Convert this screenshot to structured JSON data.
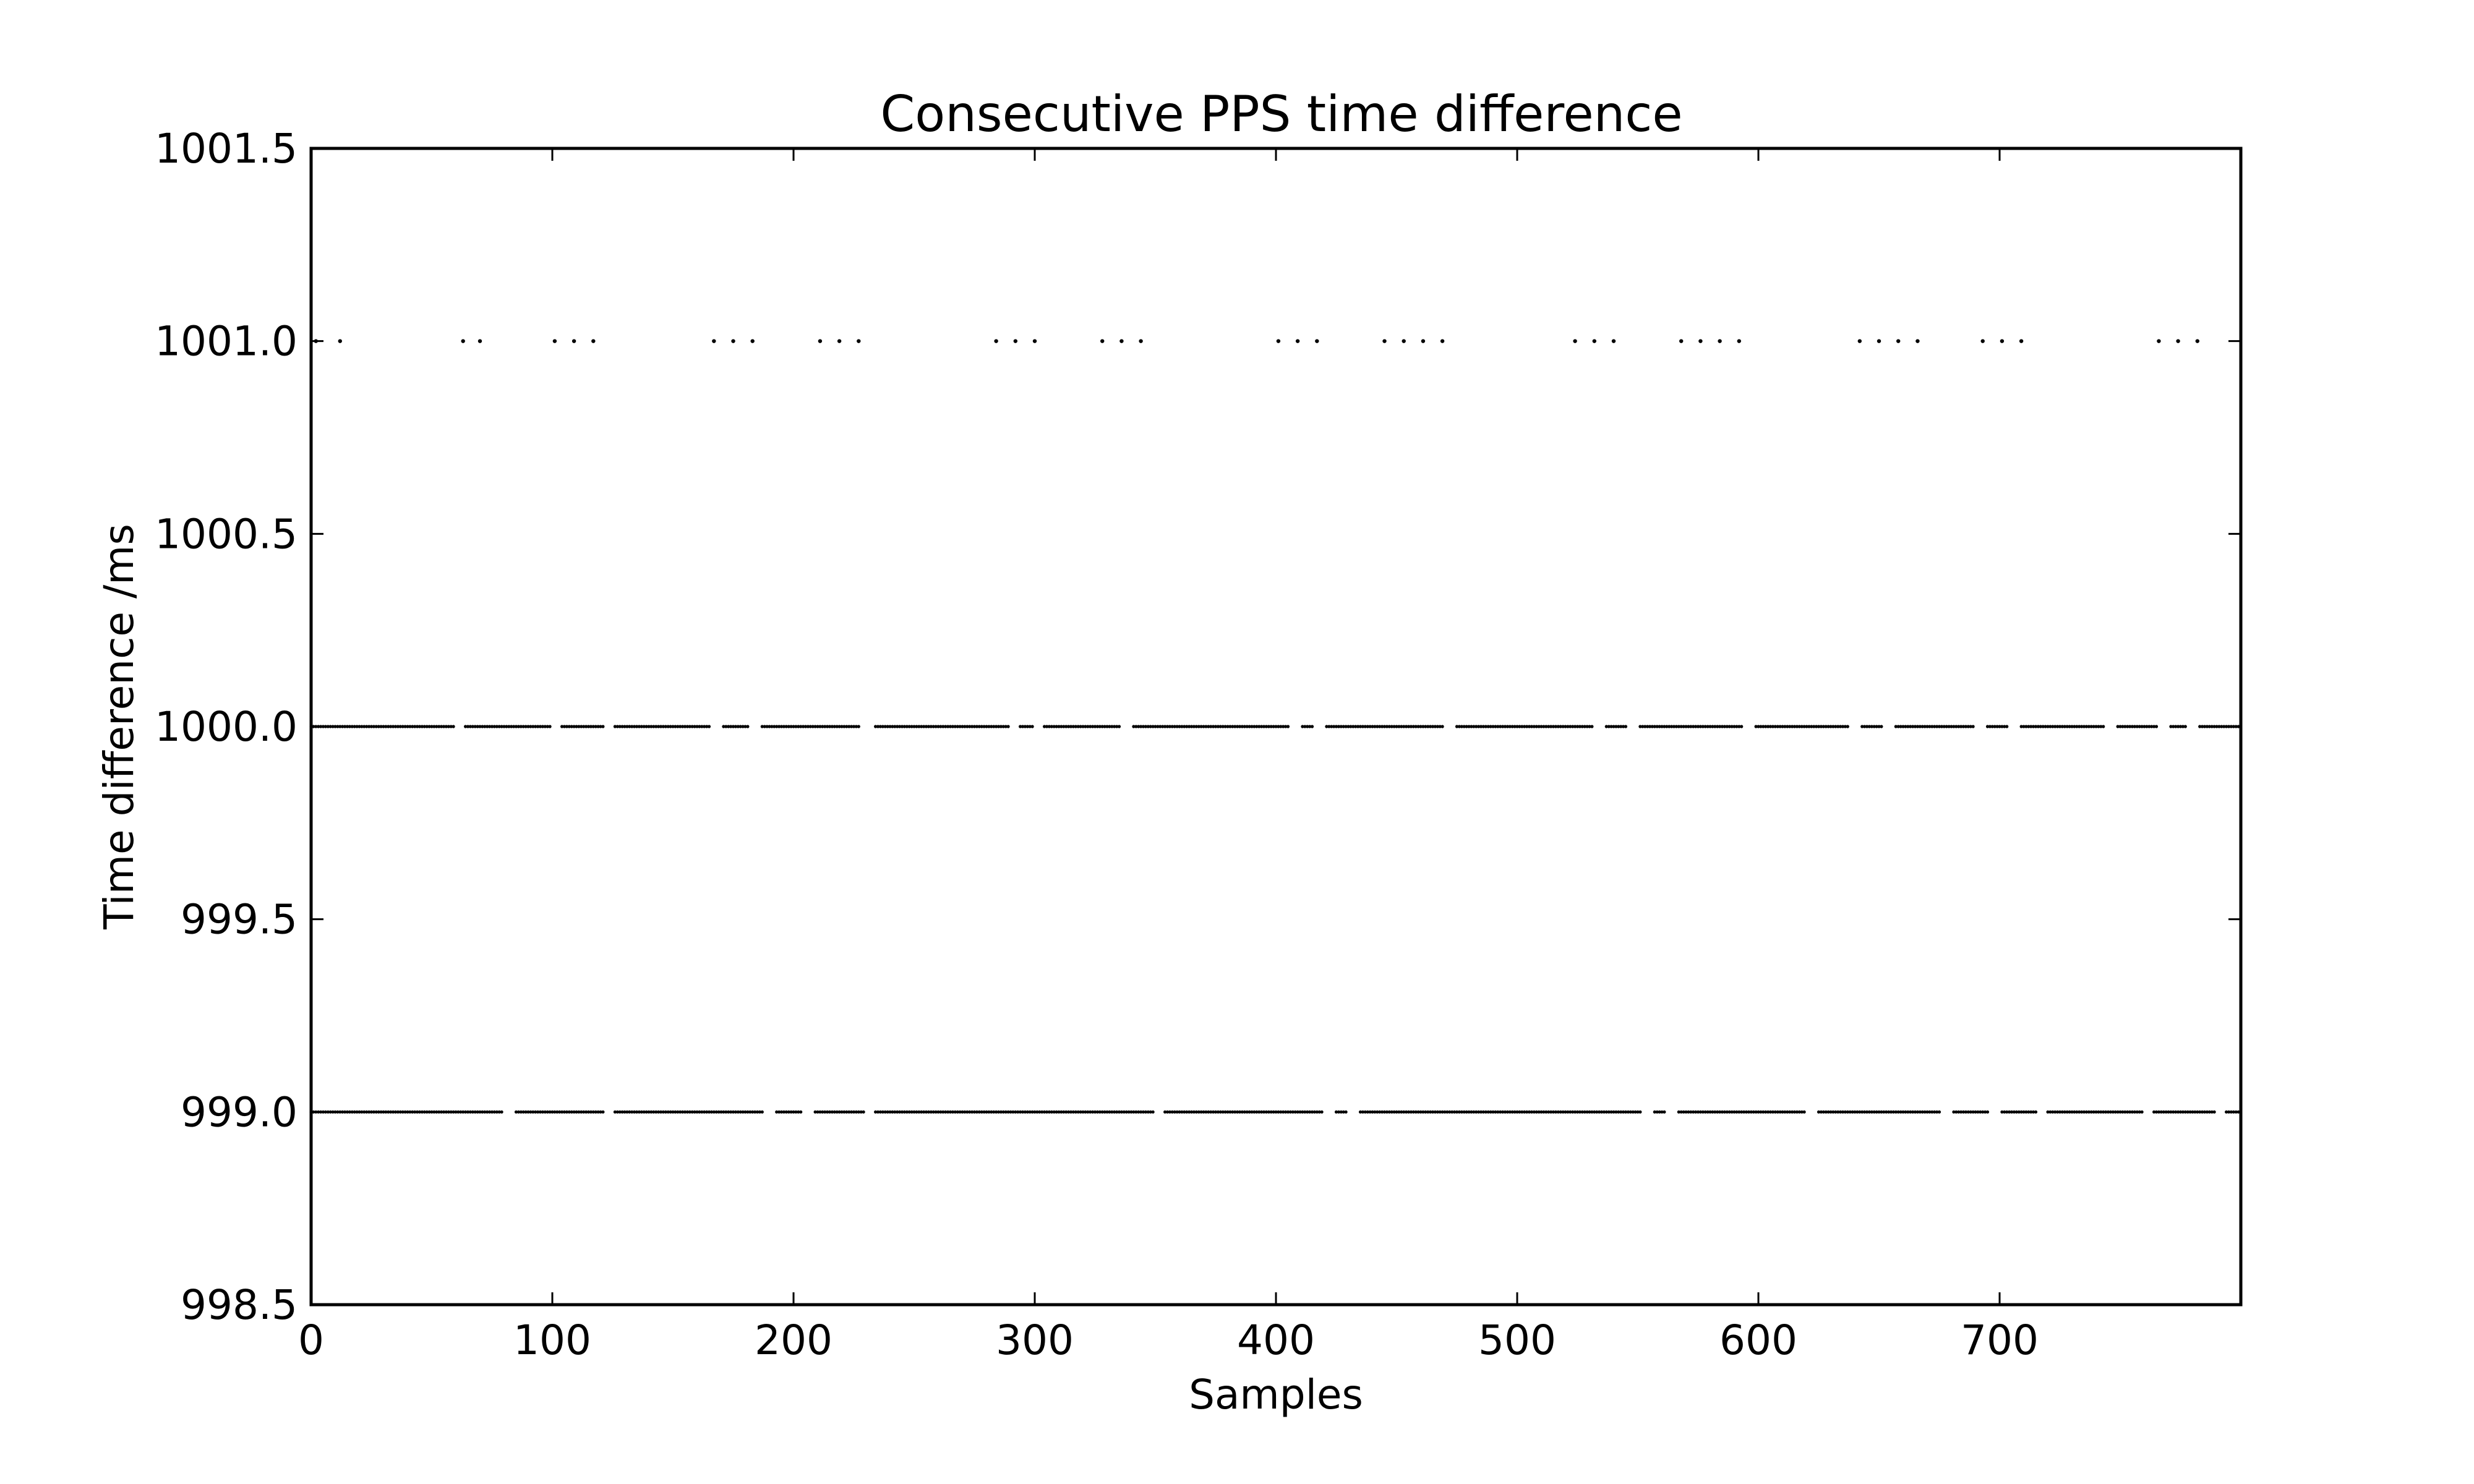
{
  "chart_data": {
    "type": "scatter",
    "title": "Consecutive PPS time difference",
    "xlabel": "Samples",
    "ylabel": "Time difference /ms",
    "xlim": [
      0,
      800
    ],
    "ylim": [
      998.5,
      1001.5
    ],
    "xticks": [
      0,
      100,
      200,
      300,
      400,
      500,
      600,
      700
    ],
    "xtick_labels": [
      "0",
      "100",
      "200",
      "300",
      "400",
      "500",
      "600",
      "700"
    ],
    "yticks": [
      998.5,
      999.0,
      999.5,
      1000.0,
      1000.5,
      1001.0,
      1001.5
    ],
    "ytick_labels": [
      "998.5",
      "999.0",
      "999.5",
      "1000.0",
      "1000.5",
      "1001.0",
      "1001.5"
    ],
    "grid": false,
    "marker_color": "#000000",
    "series": [
      {
        "y": 1001.0,
        "x": [
          2,
          12,
          63,
          70,
          101,
          109,
          117,
          167,
          175,
          183,
          211,
          219,
          227,
          284,
          292,
          300,
          328,
          336,
          344,
          401,
          409,
          417,
          445,
          453,
          461,
          469,
          524,
          532,
          540,
          568,
          576,
          584,
          592,
          642,
          650,
          658,
          666,
          693,
          701,
          709,
          766,
          774,
          782
        ]
      },
      {
        "y": 1000.0,
        "x_range": [
          0,
          799
        ],
        "gaps": [
          [
            60,
            63
          ],
          [
            100,
            103
          ],
          [
            122,
            125
          ],
          [
            166,
            170
          ],
          [
            182,
            186
          ],
          [
            228,
            233
          ],
          [
            290,
            293
          ],
          [
            300,
            303
          ],
          [
            336,
            340
          ],
          [
            406,
            410
          ],
          [
            416,
            420
          ],
          [
            470,
            474
          ],
          [
            532,
            536
          ],
          [
            546,
            550
          ],
          [
            594,
            598
          ],
          [
            638,
            642
          ],
          [
            652,
            656
          ],
          [
            690,
            694
          ],
          [
            704,
            708
          ],
          [
            744,
            748
          ],
          [
            766,
            770
          ],
          [
            778,
            782
          ]
        ]
      },
      {
        "y": 999.0,
        "x_range": [
          0,
          799
        ],
        "gaps": [
          [
            80,
            84
          ],
          [
            122,
            125
          ],
          [
            188,
            192
          ],
          [
            204,
            208
          ],
          [
            230,
            233
          ],
          [
            350,
            353
          ],
          [
            420,
            424
          ],
          [
            430,
            434
          ],
          [
            552,
            556
          ],
          [
            562,
            566
          ],
          [
            620,
            624
          ],
          [
            676,
            680
          ],
          [
            696,
            700
          ],
          [
            716,
            719
          ],
          [
            760,
            763
          ],
          [
            790,
            793
          ]
        ]
      }
    ]
  }
}
